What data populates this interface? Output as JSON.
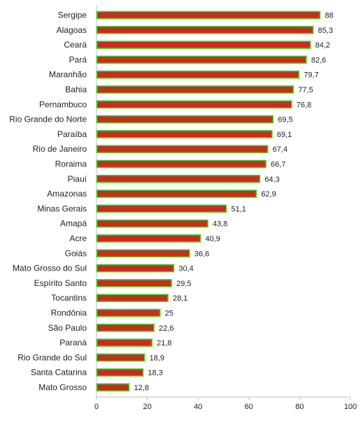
{
  "chart_data": {
    "type": "bar",
    "orientation": "horizontal",
    "categories": [
      "Sergipe",
      "Alagoas",
      "Ceará",
      "Pará",
      "Maranhão",
      "Bahia",
      "Pernambuco",
      "Rio Grande do Norte",
      "Paraíba",
      "Rio de Janeiro",
      "Roraima",
      "Piauí",
      "Amazonas",
      "Minas Gerais",
      "Amapá",
      "Acre",
      "Goiás",
      "Mato Grosso do Sul",
      "Espírito Santo",
      "Tocantins",
      "Rondônia",
      "São Paulo",
      "Paraná",
      "Rio Grande do Sul",
      "Santa Catarina",
      "Mato Grosso"
    ],
    "values": [
      88,
      85.3,
      84.2,
      82.6,
      79.7,
      77.5,
      76.8,
      69.5,
      69.1,
      67.4,
      66.7,
      64.3,
      62.9,
      51.1,
      43.8,
      40.9,
      36.6,
      30.4,
      29.5,
      28.1,
      25,
      22.6,
      21.8,
      18.9,
      18.3,
      12.8
    ],
    "value_labels": [
      "88",
      "85,3",
      "84,2",
      "82,6",
      "79,7",
      "77,5",
      "76,8",
      "69,5",
      "69,1",
      "67,4",
      "66,7",
      "64,3",
      "62,9",
      "51,1",
      "43,8",
      "40,9",
      "36,6",
      "30,4",
      "29,5",
      "28,1",
      "25",
      "22,6",
      "21,8",
      "18,9",
      "18,3",
      "12,8"
    ],
    "xlim": [
      0,
      100
    ],
    "x_ticks": [
      0,
      20,
      40,
      60,
      80,
      100
    ],
    "title": "",
    "xlabel": "",
    "ylabel": "",
    "grid": false,
    "legend": "none",
    "colors": {
      "bar_fill": "#c62d1f",
      "bar_outline": "#3fd11e",
      "text": "#222222",
      "axis": "#bfbfbf"
    }
  }
}
